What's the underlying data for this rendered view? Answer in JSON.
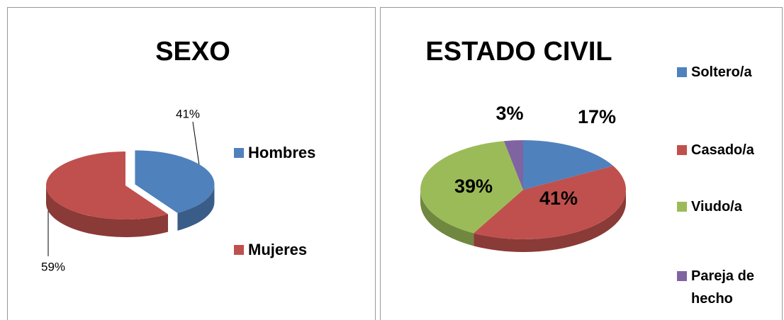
{
  "chart_data": [
    {
      "type": "pie",
      "title": "SEXO",
      "categories": [
        "Hombres",
        "Mujeres"
      ],
      "values": [
        41,
        59
      ],
      "value_labels": [
        "41%",
        "59%"
      ],
      "colors": [
        "#4f81bd",
        "#c0504d"
      ],
      "legend": "right"
    },
    {
      "type": "pie",
      "title": "ESTADO CIVIL",
      "categories": [
        "Soltero/a",
        "Casado/a",
        "Viudo/a",
        "Pareja de hecho"
      ],
      "values": [
        17,
        41,
        39,
        3
      ],
      "value_labels": [
        "17%",
        "41%",
        "39%",
        "3%"
      ],
      "colors": [
        "#4f81bd",
        "#c0504d",
        "#9bbb59",
        "#8064a2"
      ],
      "legend": "right"
    }
  ]
}
